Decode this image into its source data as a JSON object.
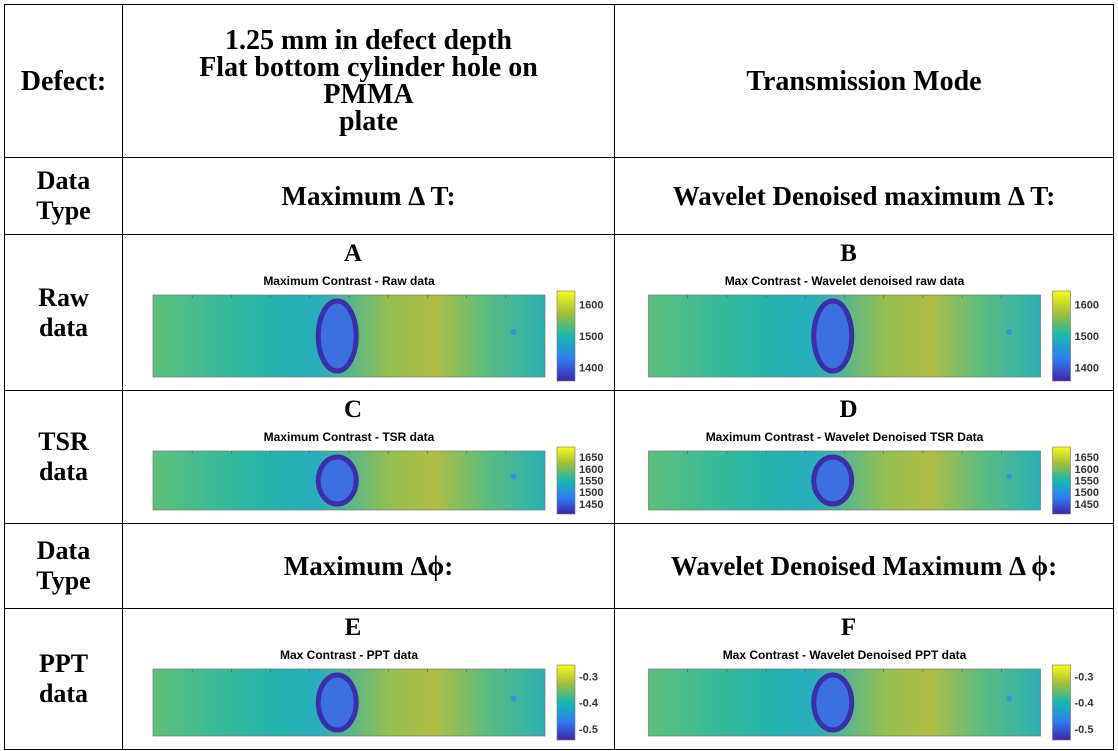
{
  "header": {
    "label": "Defect:",
    "description": [
      "1.25 mm in defect depth",
      "Flat bottom cylinder hole on",
      "PMMA",
      "plate"
    ],
    "mode": "Transmission Mode"
  },
  "rows": [
    {
      "label": [
        "Data",
        "Type"
      ],
      "cells": [
        "Maximum Δ T:",
        "Wavelet Denoised maximum Δ T:"
      ]
    },
    {
      "label": [
        "Raw",
        "data"
      ],
      "cells": [
        {
          "letter": "A",
          "title": "Maximum Contrast - Raw data",
          "colorbar": [
            1600,
            1500,
            1400
          ]
        },
        {
          "letter": "B",
          "title": "Max Contrast - Wavelet denoised raw data",
          "colorbar": [
            1600,
            1500,
            1400
          ]
        }
      ]
    },
    {
      "label": [
        "TSR",
        "data"
      ],
      "cells": [
        {
          "letter": "C",
          "title": "Maximum Contrast - TSR data",
          "colorbar": [
            1650,
            1600,
            1550,
            1500,
            1450
          ]
        },
        {
          "letter": "D",
          "title": "Maximum Contrast - Wavelet Denoised TSR Data",
          "colorbar": [
            1650,
            1600,
            1550,
            1500,
            1450
          ]
        }
      ]
    },
    {
      "label": [
        "Data",
        "Type"
      ],
      "cells": [
        "Maximum Δϕ:",
        "Wavelet Denoised Maximum Δ ϕ:"
      ]
    },
    {
      "label": [
        "PPT",
        "data"
      ],
      "cells": [
        {
          "letter": "E",
          "title": "Max Contrast - PPT data",
          "colorbar": [
            -0.3,
            -0.4,
            -0.5
          ]
        },
        {
          "letter": "F",
          "title": "Max Contrast - Wavelet Denoised PPT data",
          "colorbar": [
            -0.3,
            -0.4,
            -0.5
          ]
        }
      ]
    }
  ]
}
